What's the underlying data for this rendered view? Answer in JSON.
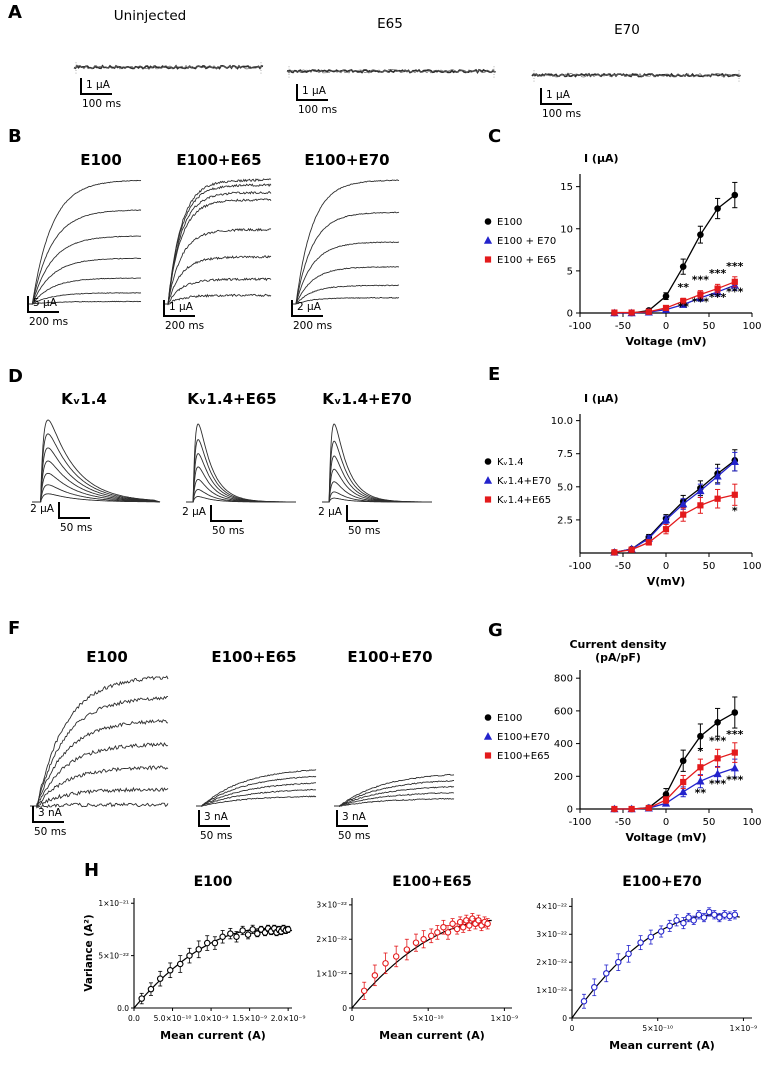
{
  "colors": {
    "black": "#000000",
    "blue": "#2323cc",
    "red": "#e31a1c",
    "trace": "#2e2e2e"
  },
  "panels": {
    "A": {
      "label": "A",
      "groups": [
        {
          "title": "Uninjected",
          "amp": "1 µA",
          "time": "100 ms"
        },
        {
          "title": "E65",
          "amp": "1 µA",
          "time": "100 ms"
        },
        {
          "title": "E70",
          "amp": "1 µA",
          "time": "100 ms"
        }
      ]
    },
    "B": {
      "label": "B",
      "groups": [
        {
          "title": "E100",
          "amp": "5 µA",
          "time": "200 ms"
        },
        {
          "title": "E100+E65",
          "amp": "1 µA",
          "time": "200 ms"
        },
        {
          "title": "E100+E70",
          "amp": "2 µA",
          "time": "200 ms"
        }
      ]
    },
    "C": {
      "label": "C"
    },
    "D": {
      "label": "D",
      "groups": [
        {
          "title": "Kᵥ1.4",
          "amp": "2 µA",
          "time": "50 ms"
        },
        {
          "title": "Kᵥ1.4+E65",
          "amp": "2 µA",
          "time": "50 ms"
        },
        {
          "title": "Kᵥ1.4+E70",
          "amp": "2 µA",
          "time": "50 ms"
        }
      ]
    },
    "E": {
      "label": "E"
    },
    "F": {
      "label": "F",
      "groups": [
        {
          "title": "E100",
          "amp": "3 nA",
          "time": "50 ms"
        },
        {
          "title": "E100+E65",
          "amp": "3 nA",
          "time": "50 ms"
        },
        {
          "title": "E100+E70",
          "amp": "3 nA",
          "time": "50 ms"
        }
      ]
    },
    "G": {
      "label": "G"
    },
    "H": {
      "label": "H"
    }
  },
  "traces": {
    "a1": {
      "type": "flat"
    },
    "a2": {
      "type": "flat"
    },
    "a3": {
      "type": "flat"
    },
    "b1": {
      "type": "rise",
      "amps": [
        1,
        0.76,
        0.55,
        0.37,
        0.21,
        0.09,
        0.02
      ],
      "tau": 0.18,
      "noise": 0.3
    },
    "b2": {
      "type": "rise",
      "amps": [
        1,
        0.96,
        0.9,
        0.84,
        0.6,
        0.38,
        0.2,
        0.07
      ],
      "tau": 0.13,
      "noise": 1.1
    },
    "b3": {
      "type": "rise",
      "amps": [
        1,
        0.74,
        0.5,
        0.3,
        0.15,
        0.05
      ],
      "tau": 0.16,
      "noise": 0.4
    },
    "d1": {
      "type": "transient",
      "amps": [
        1,
        0.83,
        0.66,
        0.5,
        0.35,
        0.21,
        0.1
      ],
      "decay": 0.24
    },
    "d2": {
      "type": "transient",
      "amps": [
        1,
        0.8,
        0.62,
        0.45,
        0.29,
        0.16,
        0.07
      ],
      "decay": 0.14
    },
    "d3": {
      "type": "transient",
      "amps": [
        1,
        0.78,
        0.59,
        0.42,
        0.26,
        0.13,
        0.05
      ],
      "decay": 0.14
    },
    "f1": {
      "type": "rise",
      "amps": [
        1,
        0.84,
        0.66,
        0.48,
        0.3,
        0.13,
        0.01
      ],
      "tau": 0.22,
      "noise": 1.8
    },
    "f2": {
      "type": "rise",
      "amps": [
        0.3,
        0.245,
        0.19,
        0.135,
        0.08
      ],
      "tau": 0.38,
      "noise": 0.5
    },
    "f3": {
      "type": "rise",
      "amps": [
        0.26,
        0.21,
        0.16,
        0.11,
        0.06
      ],
      "tau": 0.38,
      "noise": 0.5
    }
  },
  "chart_data": [
    {
      "id": "C",
      "type": "line",
      "ylabel": "I (µA)",
      "xlabel": "Voltage (mV)",
      "xlim": [
        -100,
        100
      ],
      "ylim": [
        0,
        16.5
      ],
      "xticks": [
        -100,
        -50,
        0,
        50,
        100
      ],
      "yticks": [
        0,
        5,
        10,
        15
      ],
      "ytick_labels": [
        "0",
        "5",
        "10",
        "15"
      ],
      "x": [
        -60,
        -40,
        -20,
        0,
        20,
        40,
        60,
        80
      ],
      "series": [
        {
          "name": "E100",
          "color": "black",
          "marker": "circle",
          "values": [
            0,
            0,
            0.3,
            2.0,
            5.5,
            9.3,
            12.4,
            14.0
          ],
          "err": [
            0.1,
            0.1,
            0.2,
            0.4,
            0.9,
            1.0,
            1.2,
            1.5
          ]
        },
        {
          "name": "E100 + E70",
          "color": "blue",
          "marker": "triangle",
          "values": [
            0,
            0,
            0.1,
            0.4,
            1.0,
            1.8,
            2.5,
            3.3
          ],
          "err": [
            0.05,
            0.05,
            0.1,
            0.2,
            0.3,
            0.4,
            0.5,
            0.6
          ]
        },
        {
          "name": "E100 + E65",
          "color": "red",
          "marker": "square",
          "values": [
            0.05,
            0.05,
            0.15,
            0.6,
            1.4,
            2.2,
            2.9,
            3.7
          ],
          "err": [
            0.05,
            0.05,
            0.1,
            0.2,
            0.35,
            0.45,
            0.5,
            0.6
          ]
        }
      ],
      "annotations": [
        {
          "x": 20,
          "y": 2.6,
          "text": "**"
        },
        {
          "x": 40,
          "y": 3.5,
          "text": "***"
        },
        {
          "x": 60,
          "y": 4.3,
          "text": "***"
        },
        {
          "x": 80,
          "y": 5.1,
          "text": "***"
        },
        {
          "x": 20,
          "y": 0.3,
          "text": "**"
        },
        {
          "x": 40,
          "y": 0.9,
          "text": "***"
        },
        {
          "x": 60,
          "y": 1.4,
          "text": "***"
        },
        {
          "x": 80,
          "y": 2.1,
          "text": "***"
        }
      ]
    },
    {
      "id": "E",
      "type": "line",
      "ylabel": "I (µA)",
      "xlabel": "V(mV)",
      "xlim": [
        -100,
        100
      ],
      "ylim": [
        0,
        10.5
      ],
      "xticks": [
        -100,
        -50,
        0,
        50,
        100
      ],
      "yticks": [
        2.5,
        5,
        7.5,
        10
      ],
      "ytick_labels": [
        "2.5",
        "5.0",
        "7.5",
        "10.0"
      ],
      "x": [
        -60,
        -40,
        -20,
        0,
        20,
        40,
        60,
        80
      ],
      "series": [
        {
          "name": "Kᵥ1.4",
          "color": "black",
          "marker": "circle",
          "values": [
            0.05,
            0.3,
            1.2,
            2.6,
            3.9,
            4.9,
            6.0,
            7.0
          ],
          "err": [
            0.05,
            0.1,
            0.2,
            0.3,
            0.45,
            0.55,
            0.7,
            0.8
          ]
        },
        {
          "name": "Kᵥ1.4+E70",
          "color": "blue",
          "marker": "triangle",
          "values": [
            0.05,
            0.3,
            1.1,
            2.5,
            3.7,
            4.7,
            5.8,
            6.9
          ],
          "err": [
            0.05,
            0.1,
            0.2,
            0.3,
            0.4,
            0.5,
            0.6,
            0.7
          ]
        },
        {
          "name": "Kᵥ1.4+E65",
          "color": "red",
          "marker": "square",
          "values": [
            0.05,
            0.25,
            0.8,
            1.8,
            2.9,
            3.6,
            4.1,
            4.4
          ],
          "err": [
            0.05,
            0.1,
            0.2,
            0.35,
            0.5,
            0.6,
            0.7,
            0.8
          ]
        }
      ],
      "annotations": [
        {
          "x": 80,
          "y": 2.9,
          "text": "*"
        }
      ]
    },
    {
      "id": "G",
      "type": "line",
      "ylabel": [
        "Current density",
        "(pA/pF)"
      ],
      "xlabel": "Voltage (mV)",
      "xlim": [
        -100,
        100
      ],
      "ylim": [
        0,
        850
      ],
      "xticks": [
        -100,
        -50,
        0,
        50,
        100
      ],
      "yticks": [
        0,
        200,
        400,
        600,
        800
      ],
      "ytick_labels": [
        "0",
        "200",
        "400",
        "600",
        "800"
      ],
      "x": [
        -60,
        -40,
        -20,
        0,
        20,
        40,
        60,
        80
      ],
      "series": [
        {
          "name": "E100",
          "color": "black",
          "marker": "circle",
          "values": [
            0,
            0,
            8,
            90,
            295,
            445,
            530,
            590
          ],
          "err": [
            5,
            5,
            10,
            35,
            65,
            75,
            85,
            95
          ]
        },
        {
          "name": "E100+E70",
          "color": "blue",
          "marker": "triangle",
          "values": [
            0,
            0,
            5,
            35,
            105,
            170,
            215,
            250
          ],
          "err": [
            3,
            3,
            8,
            15,
            30,
            40,
            45,
            55
          ]
        },
        {
          "name": "E100+E65",
          "color": "red",
          "marker": "square",
          "values": [
            0,
            0,
            6,
            55,
            165,
            255,
            310,
            345
          ],
          "err": [
            3,
            3,
            10,
            20,
            40,
            50,
            55,
            60
          ]
        }
      ],
      "annotations": [
        {
          "x": 40,
          "y": 330,
          "text": "*"
        },
        {
          "x": 60,
          "y": 395,
          "text": "***"
        },
        {
          "x": 80,
          "y": 435,
          "text": "***"
        },
        {
          "x": 40,
          "y": 75,
          "text": "**"
        },
        {
          "x": 60,
          "y": 130,
          "text": "***"
        },
        {
          "x": 80,
          "y": 155,
          "text": "***"
        }
      ]
    },
    {
      "id": "H1",
      "type": "scatter",
      "title": "E100",
      "color": "black",
      "ylabel": "Variance (A²)",
      "xlabel": "Mean current (A)",
      "xlim": [
        0,
        2.05
      ],
      "ylim": [
        0,
        10.5
      ],
      "x_unit": "×10⁻⁹ A",
      "y_unit": "×10⁻²² A²",
      "xticks": [
        {
          "v": 0,
          "l": "0.0"
        },
        {
          "v": 0.5,
          "l": "5.0×10⁻¹⁰"
        },
        {
          "v": 1,
          "l": "1.0×10⁻⁹"
        },
        {
          "v": 1.5,
          "l": "1.5×10⁻⁹"
        },
        {
          "v": 2,
          "l": "2.0×10⁻⁹"
        }
      ],
      "yticks": [
        {
          "v": 0,
          "l": "0.0"
        },
        {
          "v": 5,
          "l": "5×10⁻²²"
        },
        {
          "v": 10,
          "l": "1×10⁻²¹"
        }
      ],
      "fit": {
        "peak_x": 1.75,
        "peak_y": 7.6
      },
      "points": [
        [
          0.1,
          0.9,
          0.5
        ],
        [
          0.22,
          1.8,
          0.6
        ],
        [
          0.34,
          2.8,
          0.7
        ],
        [
          0.47,
          3.6,
          0.7
        ],
        [
          0.6,
          4.2,
          0.8
        ],
        [
          0.72,
          5.0,
          0.7
        ],
        [
          0.84,
          5.6,
          0.8
        ],
        [
          0.95,
          6.2,
          0.7
        ],
        [
          1.05,
          6.2,
          0.6
        ],
        [
          1.15,
          6.8,
          0.6
        ],
        [
          1.25,
          7.1,
          0.5
        ],
        [
          1.33,
          6.8,
          0.5
        ],
        [
          1.41,
          7.4,
          0.4
        ],
        [
          1.48,
          7.0,
          0.4
        ],
        [
          1.54,
          7.5,
          0.4
        ],
        [
          1.6,
          7.1,
          0.3
        ],
        [
          1.65,
          7.5,
          0.3
        ],
        [
          1.7,
          7.2,
          0.3
        ],
        [
          1.74,
          7.6,
          0.3
        ],
        [
          1.78,
          7.3,
          0.3
        ],
        [
          1.82,
          7.6,
          0.3
        ],
        [
          1.85,
          7.2,
          0.3
        ],
        [
          1.88,
          7.5,
          0.3
        ],
        [
          1.91,
          7.3,
          0.3
        ],
        [
          1.94,
          7.6,
          0.3
        ],
        [
          1.97,
          7.4,
          0.3
        ],
        [
          2.0,
          7.5,
          0.3
        ]
      ]
    },
    {
      "id": "H2",
      "type": "scatter",
      "title": "E100+E65",
      "color": "red",
      "ylabel": "",
      "xlabel": "Mean current (A)",
      "xlim": [
        0,
        1.05
      ],
      "ylim": [
        0,
        3.2
      ],
      "x_unit": "×10⁻⁹ A",
      "y_unit": "×10⁻²² A²",
      "xticks": [
        {
          "v": 0,
          "l": "0"
        },
        {
          "v": 0.5,
          "l": "5×10⁻¹⁰"
        },
        {
          "v": 1,
          "l": "1×10⁻⁹"
        }
      ],
      "yticks": [
        {
          "v": 0,
          "l": "0"
        },
        {
          "v": 1,
          "l": "1×10⁻²²"
        },
        {
          "v": 2,
          "l": "2×10⁻²²"
        },
        {
          "v": 3,
          "l": "3×10⁻²²"
        }
      ],
      "fit": {
        "peak_x": 0.95,
        "peak_y": 2.55
      },
      "points": [
        [
          0.08,
          0.5,
          0.25
        ],
        [
          0.15,
          0.95,
          0.3
        ],
        [
          0.22,
          1.3,
          0.3
        ],
        [
          0.29,
          1.5,
          0.3
        ],
        [
          0.36,
          1.7,
          0.3
        ],
        [
          0.42,
          1.9,
          0.25
        ],
        [
          0.47,
          2.0,
          0.25
        ],
        [
          0.52,
          2.1,
          0.2
        ],
        [
          0.56,
          2.2,
          0.2
        ],
        [
          0.6,
          2.35,
          0.2
        ],
        [
          0.63,
          2.2,
          0.2
        ],
        [
          0.66,
          2.45,
          0.15
        ],
        [
          0.69,
          2.3,
          0.15
        ],
        [
          0.71,
          2.5,
          0.15
        ],
        [
          0.73,
          2.35,
          0.15
        ],
        [
          0.75,
          2.55,
          0.15
        ],
        [
          0.77,
          2.4,
          0.15
        ],
        [
          0.79,
          2.6,
          0.15
        ],
        [
          0.81,
          2.45,
          0.15
        ],
        [
          0.83,
          2.55,
          0.15
        ],
        [
          0.85,
          2.4,
          0.15
        ],
        [
          0.87,
          2.5,
          0.15
        ],
        [
          0.89,
          2.45,
          0.15
        ]
      ]
    },
    {
      "id": "H3",
      "type": "scatter",
      "title": "E100+E70",
      "color": "blue",
      "ylabel": "",
      "xlabel": "Mean current (A)",
      "xlim": [
        0,
        1.05
      ],
      "ylim": [
        0,
        4.3
      ],
      "x_unit": "×10⁻⁹ A",
      "y_unit": "×10⁻²² A²",
      "xticks": [
        {
          "v": 0,
          "l": "0"
        },
        {
          "v": 0.5,
          "l": "5×10⁻¹⁰"
        },
        {
          "v": 1,
          "l": "1×10⁻⁹"
        }
      ],
      "yticks": [
        {
          "v": 0,
          "l": "0"
        },
        {
          "v": 1,
          "l": "1×10⁻²²"
        },
        {
          "v": 2,
          "l": "2×10⁻²²"
        },
        {
          "v": 3,
          "l": "3×10⁻²²"
        },
        {
          "v": 4,
          "l": "4×10⁻²²"
        }
      ],
      "fit": {
        "peak_x": 0.85,
        "peak_y": 3.7
      },
      "points": [
        [
          0.07,
          0.6,
          0.25
        ],
        [
          0.13,
          1.1,
          0.3
        ],
        [
          0.2,
          1.6,
          0.3
        ],
        [
          0.27,
          2.0,
          0.3
        ],
        [
          0.33,
          2.3,
          0.3
        ],
        [
          0.4,
          2.7,
          0.25
        ],
        [
          0.46,
          2.9,
          0.25
        ],
        [
          0.52,
          3.1,
          0.2
        ],
        [
          0.57,
          3.3,
          0.2
        ],
        [
          0.61,
          3.5,
          0.2
        ],
        [
          0.65,
          3.4,
          0.2
        ],
        [
          0.68,
          3.6,
          0.15
        ],
        [
          0.71,
          3.5,
          0.15
        ],
        [
          0.74,
          3.7,
          0.15
        ],
        [
          0.77,
          3.6,
          0.15
        ],
        [
          0.8,
          3.8,
          0.15
        ],
        [
          0.83,
          3.7,
          0.15
        ],
        [
          0.86,
          3.6,
          0.15
        ],
        [
          0.89,
          3.7,
          0.15
        ],
        [
          0.92,
          3.65,
          0.15
        ],
        [
          0.95,
          3.7,
          0.15
        ]
      ]
    }
  ]
}
